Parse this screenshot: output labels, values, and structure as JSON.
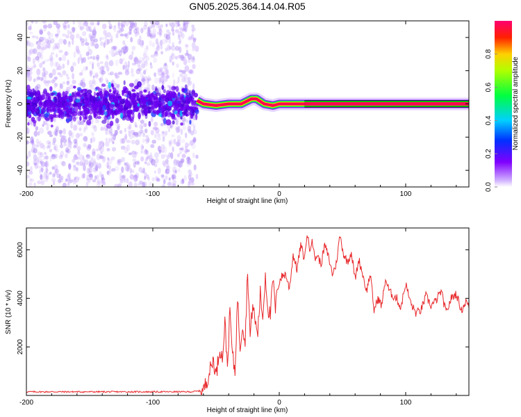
{
  "title": "GN05.2025.364.14.04.R05",
  "colors": {
    "snr_line": "#e8282b",
    "frame": "#000000",
    "spectrogram_low": "#a070f0",
    "spectrogram_mid": "#6a00f0",
    "band_core": "#ff0050",
    "band_edge": "#00ff00"
  },
  "chart_data": [
    {
      "type": "heatmap",
      "name": "spectrogram",
      "xlabel": "Height of straight line (km)",
      "ylabel": "Frequency (Hz)",
      "xlim": [
        -200,
        150
      ],
      "ylim": [
        -50,
        50
      ],
      "xticks": [
        -200,
        -100,
        0,
        100
      ],
      "xtick_labels": [
        "-200",
        "-100",
        "0",
        "100"
      ],
      "yticks": [
        -40,
        -20,
        0,
        20,
        40
      ],
      "ytick_labels": [
        "-40",
        "-20",
        "0",
        "20",
        "40"
      ],
      "noise_region_x": [
        -200,
        -65
      ],
      "transition_region_x": [
        -65,
        20
      ],
      "carrier_track": [
        {
          "x": -65,
          "y": 2
        },
        {
          "x": -60,
          "y": 0
        },
        {
          "x": -50,
          "y": -1
        },
        {
          "x": -40,
          "y": 0
        },
        {
          "x": -30,
          "y": 0
        },
        {
          "x": -22,
          "y": 3
        },
        {
          "x": -18,
          "y": 3
        },
        {
          "x": -12,
          "y": 0
        },
        {
          "x": -5,
          "y": -1
        },
        {
          "x": 0,
          "y": 0
        },
        {
          "x": 20,
          "y": 0
        },
        {
          "x": 150,
          "y": 0
        }
      ],
      "colorbar": {
        "label": "Normalized spectral amplitude",
        "range": [
          0,
          1
        ],
        "ticks": [
          0.0,
          0.2,
          0.4,
          0.6,
          0.8
        ],
        "tick_labels": [
          "0.0",
          "0.2",
          "0.4",
          "0.6",
          "0.8"
        ]
      }
    },
    {
      "type": "line",
      "name": "snr",
      "xlabel": "Height of straight line (km)",
      "ylabel": "SNR (10 * v/v)",
      "xlim": [
        -200,
        150
      ],
      "ylim": [
        0,
        6900
      ],
      "xticks": [
        -200,
        -100,
        0,
        100
      ],
      "xtick_labels": [
        "-200",
        "-100",
        "0",
        "100"
      ],
      "yticks": [
        2000,
        4000,
        6000
      ],
      "ytick_labels": [
        "2000",
        "4000",
        "6000"
      ],
      "series": [
        {
          "name": "SNR",
          "x": [
            -200,
            -180,
            -160,
            -140,
            -120,
            -100,
            -80,
            -70,
            -60,
            -58,
            -55,
            -52,
            -50,
            -47,
            -45,
            -43,
            -41,
            -39,
            -37,
            -35,
            -33,
            -31,
            -29,
            -27,
            -25,
            -23,
            -21,
            -19,
            -17,
            -15,
            -13,
            -11,
            -9,
            -7,
            -5,
            -3,
            -1,
            2,
            5,
            8,
            11,
            14,
            17,
            20,
            22,
            24,
            26,
            28,
            30,
            33,
            36,
            39,
            42,
            45,
            48,
            51,
            54,
            57,
            60,
            63,
            66,
            69,
            72,
            75,
            78,
            81,
            84,
            87,
            90,
            93,
            96,
            100,
            104,
            108,
            112,
            116,
            120,
            124,
            128,
            132,
            136,
            140,
            144,
            148,
            150
          ],
          "values": [
            150,
            150,
            150,
            150,
            150,
            150,
            150,
            150,
            200,
            500,
            1000,
            1500,
            800,
            2000,
            1500,
            3000,
            1200,
            3500,
            1600,
            1000,
            4000,
            2000,
            3000,
            2200,
            5200,
            2400,
            3800,
            3000,
            2600,
            4200,
            3200,
            5000,
            3600,
            3300,
            4800,
            3500,
            4600,
            4900,
            5000,
            4400,
            5800,
            5200,
            6200,
            5600,
            6700,
            6000,
            6500,
            5600,
            5800,
            5400,
            6200,
            5700,
            5000,
            5400,
            6600,
            5800,
            5500,
            5900,
            4800,
            5600,
            5000,
            4300,
            5000,
            3500,
            4000,
            3700,
            4800,
            4300,
            4100,
            4000,
            3600,
            4600,
            3800,
            3400,
            3500,
            4100,
            3700,
            3900,
            4300,
            3400,
            4000,
            4200,
            3500,
            3900,
            3600
          ]
        }
      ]
    }
  ]
}
